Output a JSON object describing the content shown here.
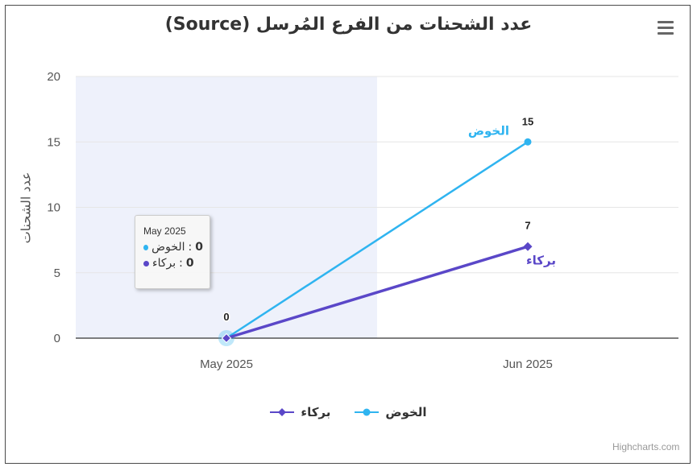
{
  "title": "عدد الشحنات من الفرع المُرسل (Source)",
  "menu_icon": "hamburger-menu-icon",
  "credits": "Highcharts.com",
  "tooltip": {
    "header": "May 2025",
    "rows": [
      {
        "name": "الخوض",
        "value": "0",
        "color": "#2fb4f0"
      },
      {
        "name": "بركاء",
        "value": "0",
        "color": "#5a47c8"
      }
    ]
  },
  "chart_data": {
    "type": "line",
    "categories": [
      "May 2025",
      "Jun 2025"
    ],
    "ylabel": "عدد الشحنات",
    "xlabel": "",
    "ylim": [
      0,
      20
    ],
    "yticks": [
      0,
      5,
      10,
      15,
      20
    ],
    "grid": true,
    "highlighted_category": "May 2025",
    "legend_placement": "bottom-center",
    "series": [
      {
        "name": "الخوض",
        "values": [
          0,
          15
        ],
        "color": "#2fb4f0",
        "marker": "circle"
      },
      {
        "name": "بركاء",
        "values": [
          0,
          7
        ],
        "color": "#5a47c8",
        "marker": "diamond"
      }
    ],
    "data_labels": [
      "0",
      "15",
      "7"
    ]
  }
}
